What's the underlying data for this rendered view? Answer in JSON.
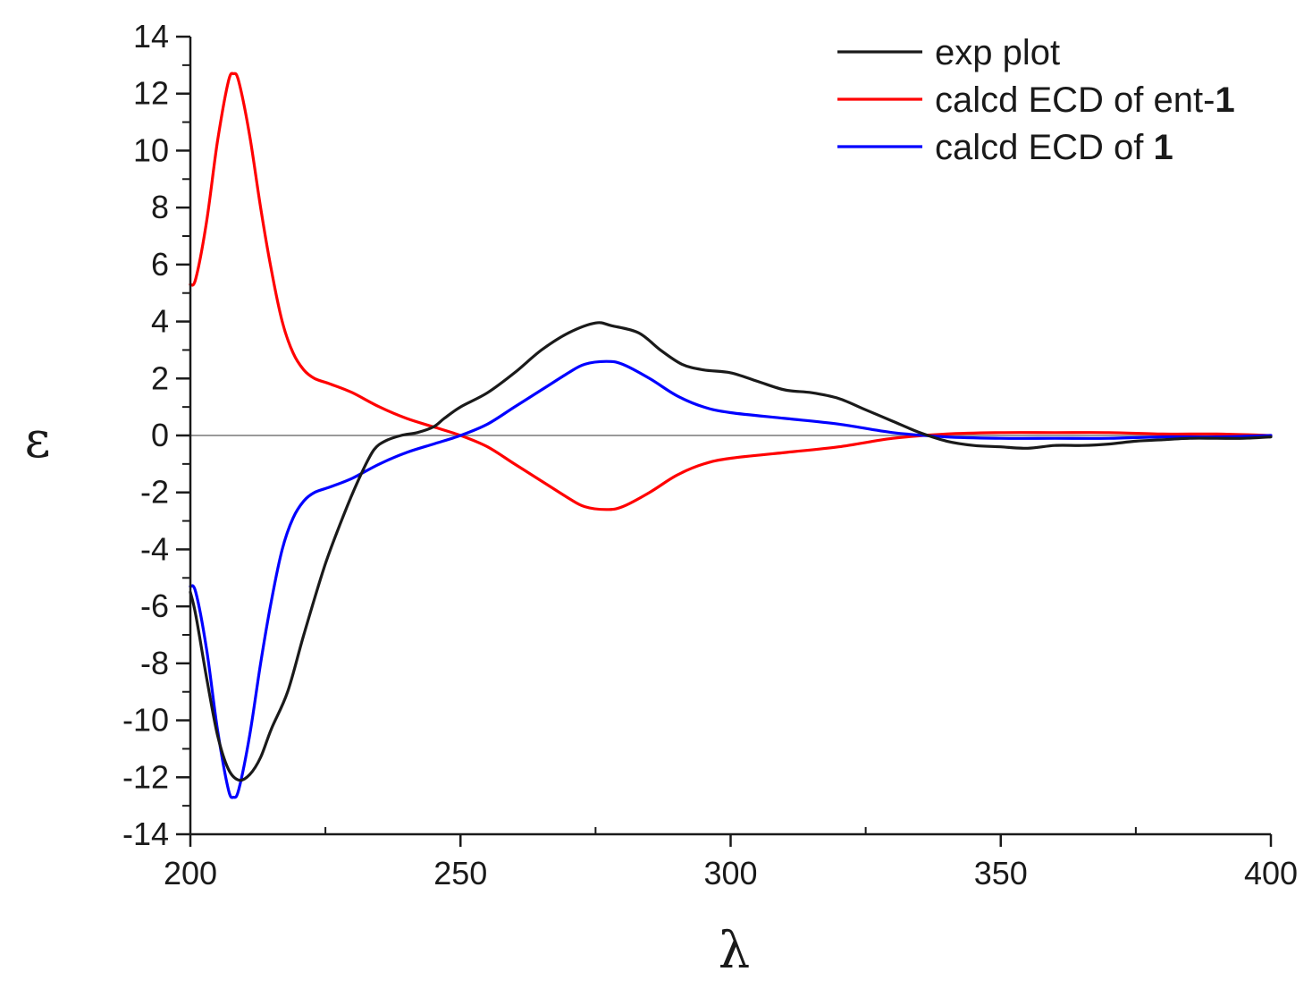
{
  "chart_data": {
    "type": "line",
    "xlabel": "λ",
    "ylabel": "ε",
    "xlim": [
      200,
      400
    ],
    "ylim": [
      -14,
      14
    ],
    "x_ticks": [
      200,
      250,
      300,
      350,
      400
    ],
    "x_tick_labels": [
      "200",
      "250",
      "300",
      "350",
      "400"
    ],
    "y_ticks": [
      -14,
      -12,
      -10,
      -8,
      -6,
      -4,
      -2,
      0,
      2,
      4,
      6,
      8,
      10,
      12,
      14
    ],
    "y_tick_labels": [
      "-14",
      "-12",
      "-10",
      "-8",
      "-6",
      "-4",
      "-2",
      "0",
      "2",
      "4",
      "6",
      "8",
      "10",
      "12",
      "14"
    ],
    "zero_line": true,
    "grid": false,
    "legend_position": "top-right",
    "series": [
      {
        "name": "exp plot",
        "label_plain": "exp plot",
        "label_bold": "",
        "color": "#1a1a1a",
        "x": [
          200,
          201,
          203,
          205,
          207,
          209,
          211,
          213,
          215,
          218,
          221,
          225,
          229,
          232,
          234,
          236,
          239,
          242,
          245,
          247,
          250,
          255,
          260,
          265,
          270,
          275,
          278,
          283,
          287,
          291,
          295,
          300,
          305,
          310,
          315,
          320,
          325,
          330,
          335,
          340,
          345,
          350,
          355,
          360,
          365,
          370,
          375,
          380,
          385,
          390,
          395,
          400
        ],
        "y": [
          -5.5,
          -6.3,
          -8.5,
          -10.5,
          -11.7,
          -12.1,
          -11.9,
          -11.3,
          -10.3,
          -9.0,
          -7.0,
          -4.5,
          -2.5,
          -1.2,
          -0.5,
          -0.2,
          0.0,
          0.1,
          0.3,
          0.6,
          1.0,
          1.5,
          2.2,
          3.0,
          3.6,
          3.95,
          3.85,
          3.6,
          3.0,
          2.5,
          2.3,
          2.2,
          1.9,
          1.6,
          1.5,
          1.3,
          0.9,
          0.5,
          0.1,
          -0.2,
          -0.35,
          -0.4,
          -0.45,
          -0.35,
          -0.35,
          -0.3,
          -0.2,
          -0.15,
          -0.1,
          -0.1,
          -0.1,
          -0.05
        ]
      },
      {
        "name": "calcd ECD of ent-1",
        "label_plain": "calcd ECD of ent-",
        "label_bold": "1",
        "color": "#ff0000",
        "x": [
          200,
          201,
          203,
          205,
          207,
          208,
          209,
          211,
          213,
          215,
          217,
          219,
          221,
          223,
          226,
          230,
          235,
          240,
          245,
          250,
          255,
          260,
          265,
          270,
          273,
          277,
          280,
          285,
          290,
          295,
          300,
          310,
          320,
          330,
          340,
          350,
          360,
          370,
          380,
          390,
          400
        ],
        "y": [
          5.3,
          5.5,
          7.5,
          10.3,
          12.4,
          12.7,
          12.4,
          10.5,
          8.0,
          5.8,
          4.0,
          2.9,
          2.3,
          2.0,
          1.8,
          1.5,
          1.0,
          0.6,
          0.3,
          0.0,
          -0.4,
          -1.0,
          -1.6,
          -2.2,
          -2.5,
          -2.6,
          -2.5,
          -2.0,
          -1.4,
          -1.0,
          -0.8,
          -0.6,
          -0.4,
          -0.1,
          0.05,
          0.1,
          0.1,
          0.1,
          0.05,
          0.05,
          0.0
        ]
      },
      {
        "name": "calcd ECD of 1",
        "label_plain": "calcd ECD of ",
        "label_bold": "1",
        "color": "#0000ff",
        "x": [
          200,
          201,
          203,
          205,
          207,
          208,
          209,
          211,
          213,
          215,
          217,
          219,
          221,
          223,
          226,
          230,
          235,
          240,
          245,
          250,
          255,
          260,
          265,
          270,
          273,
          277,
          280,
          285,
          290,
          295,
          300,
          310,
          320,
          330,
          340,
          350,
          360,
          370,
          380,
          390,
          400
        ],
        "y": [
          -5.3,
          -5.5,
          -7.5,
          -10.3,
          -12.4,
          -12.7,
          -12.4,
          -10.5,
          -8.0,
          -5.8,
          -4.0,
          -2.9,
          -2.3,
          -2.0,
          -1.8,
          -1.5,
          -1.0,
          -0.6,
          -0.3,
          0.0,
          0.4,
          1.0,
          1.6,
          2.2,
          2.5,
          2.6,
          2.5,
          2.0,
          1.4,
          1.0,
          0.8,
          0.6,
          0.4,
          0.1,
          -0.05,
          -0.1,
          -0.1,
          -0.1,
          -0.05,
          -0.05,
          0.0
        ]
      }
    ]
  }
}
